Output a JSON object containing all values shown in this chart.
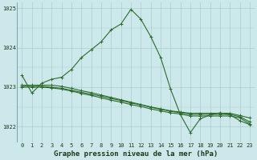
{
  "xlabel": "Graphe pression niveau de la mer (hPa)",
  "bg_color": "#cce8ea",
  "grid_color": "#aacccc",
  "line_color": "#2d6b2d",
  "xlim": [
    -0.5,
    23.5
  ],
  "ylim": [
    1021.6,
    1025.15
  ],
  "yticks": [
    1022,
    1023,
    1024,
    1025
  ],
  "xticks": [
    0,
    1,
    2,
    3,
    4,
    5,
    6,
    7,
    8,
    9,
    10,
    11,
    12,
    13,
    14,
    15,
    16,
    17,
    18,
    19,
    20,
    21,
    22,
    23
  ],
  "series": [
    [
      1023.3,
      1022.85,
      1023.1,
      1023.2,
      1023.25,
      1023.45,
      1023.75,
      1023.95,
      1024.15,
      1024.45,
      1024.6,
      1024.97,
      1024.72,
      1024.28,
      1023.75,
      1022.95,
      1022.3,
      1021.85,
      1022.2,
      1022.3,
      1022.35,
      1022.3,
      1022.15,
      1022.05
    ],
    [
      1023.05,
      1023.05,
      1023.05,
      1023.05,
      1023.02,
      1022.97,
      1022.91,
      1022.86,
      1022.8,
      1022.74,
      1022.68,
      1022.62,
      1022.56,
      1022.5,
      1022.45,
      1022.4,
      1022.37,
      1022.34,
      1022.34,
      1022.34,
      1022.34,
      1022.34,
      1022.28,
      1022.22
    ],
    [
      1023.02,
      1023.02,
      1023.02,
      1023.0,
      1022.97,
      1022.92,
      1022.87,
      1022.82,
      1022.77,
      1022.71,
      1022.66,
      1022.6,
      1022.55,
      1022.49,
      1022.44,
      1022.39,
      1022.35,
      1022.31,
      1022.31,
      1022.31,
      1022.31,
      1022.31,
      1022.25,
      1022.12
    ],
    [
      1023.0,
      1023.0,
      1023.0,
      1022.98,
      1022.95,
      1022.9,
      1022.84,
      1022.79,
      1022.73,
      1022.67,
      1022.62,
      1022.56,
      1022.51,
      1022.45,
      1022.4,
      1022.35,
      1022.32,
      1022.27,
      1022.27,
      1022.27,
      1022.27,
      1022.27,
      1022.22,
      1022.07
    ]
  ],
  "marker": "+",
  "markersize": 3,
  "linewidth": 0.8,
  "label_fontsize": 6.5,
  "tick_fontsize": 5.0
}
